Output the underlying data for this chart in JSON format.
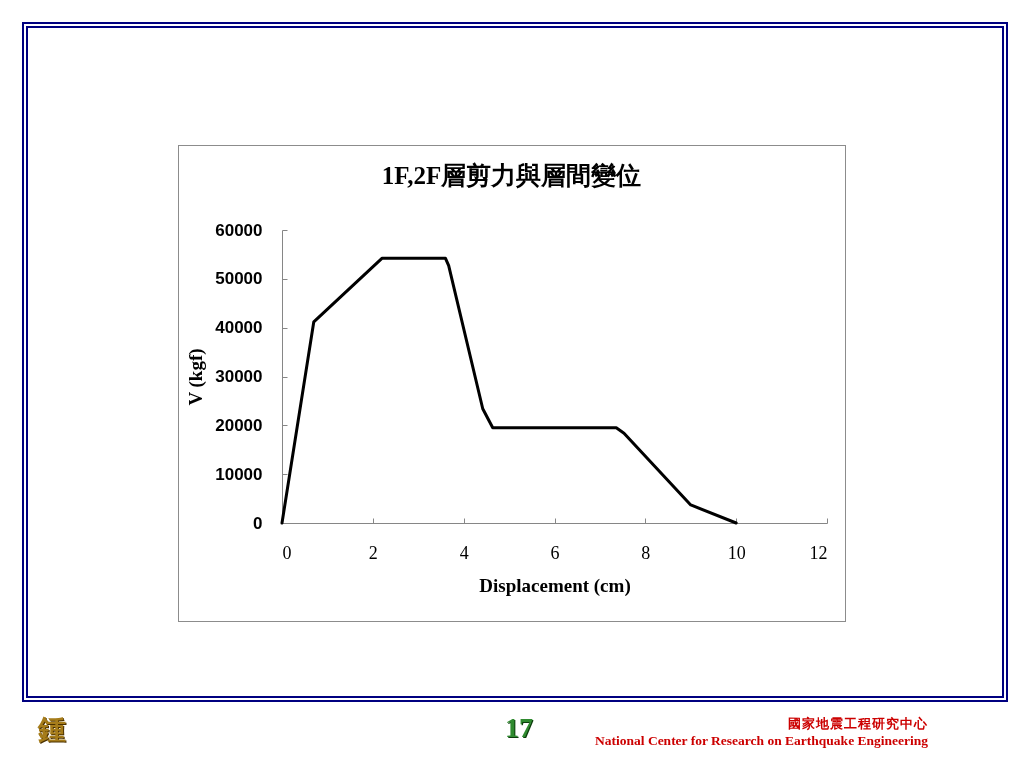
{
  "chart_data": {
    "type": "line",
    "title": "1F,2F層剪力與層間變位",
    "xlabel": "Displacement (cm)",
    "ylabel": "V (kgf)",
    "x": [
      0,
      0.7,
      2.2,
      3.6,
      3.67,
      4.42,
      4.64,
      7.36,
      7.53,
      9.0,
      10
    ],
    "series": [
      {
        "color": "#000000",
        "values": [
          0,
          41200,
          54200,
          54200,
          52700,
          23400,
          19500,
          19500,
          18400,
          3700,
          0
        ]
      }
    ],
    "xlim": [
      0,
      12
    ],
    "xticks": [
      0,
      2,
      4,
      6,
      8,
      10,
      12
    ],
    "ylim": [
      0,
      60000
    ],
    "yticks": [
      0,
      10000,
      20000,
      30000,
      40000,
      50000,
      60000
    ],
    "grid": false,
    "marker": "none",
    "line_style": "solid",
    "annotations": [
      "鍾",
      "17",
      "國家地震工程研究中心",
      "National Center for Research on Earthquake Engineering"
    ]
  }
}
